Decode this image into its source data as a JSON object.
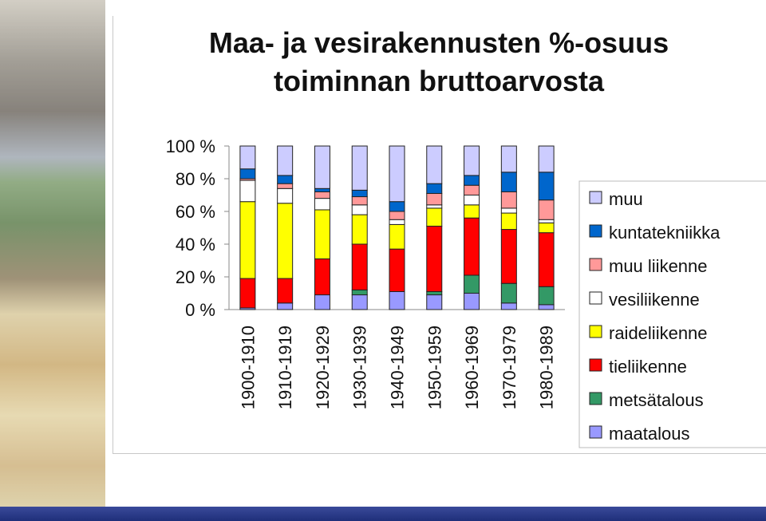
{
  "chart_data": {
    "type": "bar",
    "stacked": true,
    "percent": true,
    "title_lines": [
      "Maa- ja vesirakennusten %-osuus",
      "toiminnan bruttoarvosta"
    ],
    "categories": [
      "1900-1910",
      "1910-1919",
      "1920-1929",
      "1930-1939",
      "1940-1949",
      "1950-1959",
      "1960-1969",
      "1970-1979",
      "1980-1989"
    ],
    "y_ticks": [
      "0 %",
      "20 %",
      "40 %",
      "60 %",
      "80 %",
      "100 %"
    ],
    "ylim": [
      0,
      100
    ],
    "legend_position": "right",
    "series": [
      {
        "name": "maatalous",
        "color": "#9999ff",
        "values": [
          1,
          4,
          9,
          9,
          11,
          9,
          10,
          4,
          3
        ]
      },
      {
        "name": "metsätalous",
        "color": "#339966",
        "values": [
          0,
          0,
          0,
          3,
          0,
          2,
          11,
          12,
          11
        ]
      },
      {
        "name": "tieliikenne",
        "color": "#ff0000",
        "values": [
          18,
          15,
          22,
          28,
          26,
          40,
          35,
          33,
          33
        ]
      },
      {
        "name": "raideliikenne",
        "color": "#ffff00",
        "values": [
          47,
          46,
          30,
          18,
          15,
          11,
          8,
          10,
          6
        ]
      },
      {
        "name": "vesiliikenne",
        "color": "#ffffff",
        "values": [
          13,
          9,
          7,
          6,
          3,
          2,
          6,
          3,
          2
        ]
      },
      {
        "name": "muu liikenne",
        "color": "#ff9999",
        "values": [
          1,
          3,
          4,
          5,
          5,
          7,
          6,
          10,
          12
        ]
      },
      {
        "name": "kuntatekniikka",
        "color": "#0066cc",
        "values": [
          6,
          5,
          2,
          4,
          6,
          6,
          6,
          12,
          17
        ]
      },
      {
        "name": "muu",
        "color": "#ccccff",
        "values": [
          14,
          18,
          26,
          27,
          34,
          23,
          18,
          16,
          16
        ]
      }
    ]
  }
}
